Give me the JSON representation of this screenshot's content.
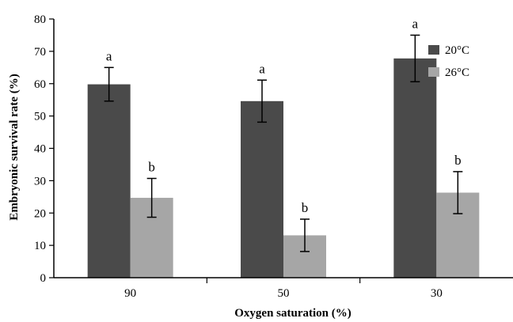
{
  "chart_data": {
    "type": "bar",
    "categories": [
      "90",
      "50",
      "30"
    ],
    "series": [
      {
        "name": "20°C",
        "color": "#4a4a4a",
        "values": [
          59.8,
          54.6,
          67.8
        ],
        "errors": [
          5.2,
          6.5,
          7.2
        ],
        "letters": [
          "a",
          "a",
          "a"
        ]
      },
      {
        "name": "26°C",
        "color": "#a6a6a6",
        "values": [
          24.7,
          13.1,
          26.3
        ],
        "errors": [
          6.0,
          5.0,
          6.5
        ],
        "letters": [
          "b",
          "b",
          "b"
        ]
      }
    ],
    "xlabel": "Oxygen saturation (%)",
    "ylabel": "Embryonic survival rate (%)",
    "ylim": [
      0,
      80
    ],
    "yticks": [
      "0",
      "10",
      "20",
      "30",
      "40",
      "50",
      "60",
      "70",
      "80"
    ],
    "grid": false,
    "legend_position": "top-right"
  }
}
